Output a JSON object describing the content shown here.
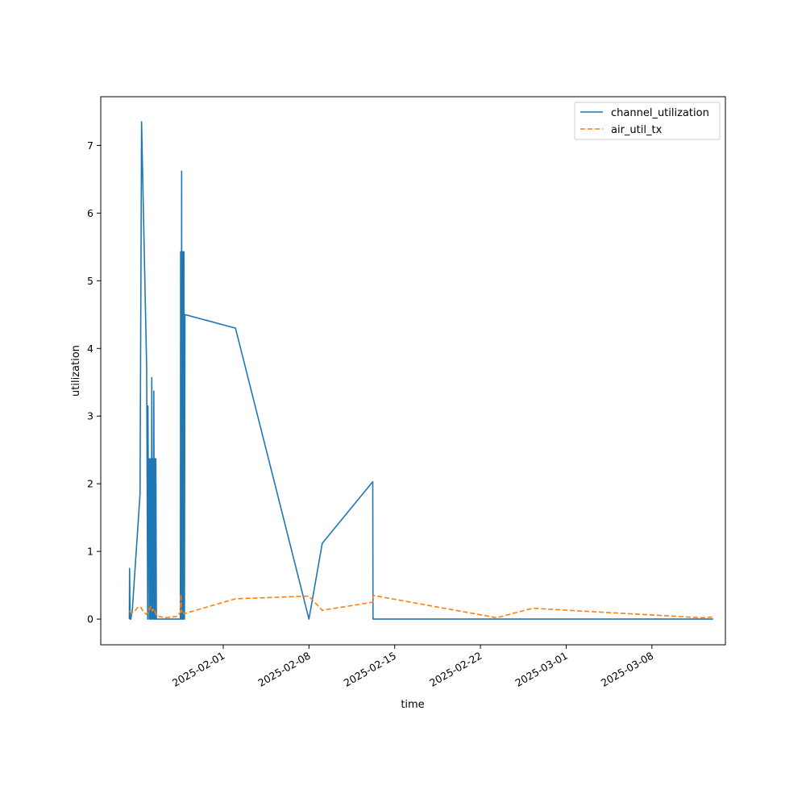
{
  "chart_data": {
    "type": "line",
    "xlabel": "time",
    "ylabel": "utilization",
    "x_axis_type": "date",
    "xlim": [
      "2025-01-22",
      "2025-03-14"
    ],
    "ylim": [
      -0.38,
      7.72
    ],
    "grid": false,
    "legend_position": "top-right",
    "x_ticks": [
      "2025-02-01",
      "2025-02-08",
      "2025-02-15",
      "2025-02-22",
      "2025-03-01",
      "2025-03-08"
    ],
    "y_ticks": [
      0,
      1,
      2,
      3,
      4,
      5,
      6,
      7
    ],
    "y_tick_labels": [
      "0",
      "1",
      "2",
      "3",
      "4",
      "5",
      "6",
      "7"
    ],
    "series": [
      {
        "name": "channel_utilization",
        "color": "#1f77b4",
        "dash": "solid",
        "points": [
          [
            "2025-01-24T08:00",
            0.0
          ],
          [
            "2025-01-24T08:30",
            0.75
          ],
          [
            "2025-01-24T09:30",
            0.0
          ],
          [
            "2025-01-24T11:00",
            0.0
          ],
          [
            "2025-01-24T14:00",
            0.15
          ],
          [
            "2025-01-25T05:00",
            1.85
          ],
          [
            "2025-01-25T08:00",
            7.35
          ],
          [
            "2025-01-25T18:00",
            3.7
          ],
          [
            "2025-01-25T20:00",
            0.0
          ],
          [
            "2025-01-25T20:30",
            3.15
          ],
          [
            "2025-01-25T21:00",
            2.37
          ],
          [
            "2025-01-25T22:00",
            2.37
          ],
          [
            "2025-01-25T23:00",
            0.0
          ],
          [
            "2025-01-26T00:00",
            2.37
          ],
          [
            "2025-01-26T01:00",
            0.0
          ],
          [
            "2025-01-26T02:00",
            2.37
          ],
          [
            "2025-01-26T03:00",
            0.0
          ],
          [
            "2025-01-26T04:00",
            3.57
          ],
          [
            "2025-01-26T05:00",
            0.0
          ],
          [
            "2025-01-26T06:00",
            2.37
          ],
          [
            "2025-01-26T07:00",
            0.0
          ],
          [
            "2025-01-26T08:00",
            3.37
          ],
          [
            "2025-01-26T09:00",
            0.0
          ],
          [
            "2025-01-26T10:00",
            2.37
          ],
          [
            "2025-01-26T11:00",
            0.0
          ],
          [
            "2025-01-26T12:00",
            2.37
          ],
          [
            "2025-01-26T13:00",
            0.0
          ],
          [
            "2025-01-28T12:00",
            0.0
          ],
          [
            "2025-01-28T12:30",
            5.43
          ],
          [
            "2025-01-28T13:00",
            0.0
          ],
          [
            "2025-01-28T13:30",
            5.43
          ],
          [
            "2025-01-28T14:00",
            0.0
          ],
          [
            "2025-01-28T14:30",
            6.62
          ],
          [
            "2025-01-28T15:00",
            0.0
          ],
          [
            "2025-01-28T15:30",
            5.43
          ],
          [
            "2025-01-28T16:00",
            0.0
          ],
          [
            "2025-01-28T17:00",
            5.43
          ],
          [
            "2025-01-28T18:00",
            0.0
          ],
          [
            "2025-01-28T19:00",
            5.43
          ],
          [
            "2025-01-28T20:00",
            0.0
          ],
          [
            "2025-01-28T21:00",
            4.5
          ],
          [
            "2025-02-02T00:00",
            4.3
          ],
          [
            "2025-02-08T00:00",
            0.0
          ],
          [
            "2025-02-09T02:00",
            1.12
          ],
          [
            "2025-02-13T05:00",
            2.03
          ],
          [
            "2025-02-13T05:30",
            0.0
          ],
          [
            "2025-03-13T00:00",
            0.0
          ]
        ]
      },
      {
        "name": "air_util_tx",
        "color": "#ff7f0e",
        "dash": "dashed",
        "points": [
          [
            "2025-01-24T08:00",
            0.12
          ],
          [
            "2025-01-24T12:00",
            0.09
          ],
          [
            "2025-01-24T18:00",
            0.11
          ],
          [
            "2025-01-25T00:00",
            0.17
          ],
          [
            "2025-01-25T06:00",
            0.18
          ],
          [
            "2025-01-25T12:00",
            0.1
          ],
          [
            "2025-01-25T18:00",
            0.07
          ],
          [
            "2025-01-25T22:00",
            0.12
          ],
          [
            "2025-01-26T02:00",
            0.19
          ],
          [
            "2025-01-26T05:00",
            0.12
          ],
          [
            "2025-01-26T08:00",
            0.16
          ],
          [
            "2025-01-26T12:00",
            0.07
          ],
          [
            "2025-01-26T18:00",
            0.04
          ],
          [
            "2025-01-27T06:00",
            0.02
          ],
          [
            "2025-01-27T18:00",
            0.03
          ],
          [
            "2025-01-28T06:00",
            0.04
          ],
          [
            "2025-01-28T12:00",
            0.1
          ],
          [
            "2025-01-28T13:00",
            0.37
          ],
          [
            "2025-01-28T14:00",
            0.1
          ],
          [
            "2025-01-28T15:00",
            0.13
          ],
          [
            "2025-01-28T17:00",
            0.1
          ],
          [
            "2025-01-28T20:00",
            0.08
          ],
          [
            "2025-01-29T00:00",
            0.09
          ],
          [
            "2025-02-02T00:00",
            0.3
          ],
          [
            "2025-02-08T00:00",
            0.34
          ],
          [
            "2025-02-09T02:00",
            0.13
          ],
          [
            "2025-02-13T05:00",
            0.25
          ],
          [
            "2025-02-13T06:00",
            0.35
          ],
          [
            "2025-02-23T08:00",
            0.02
          ],
          [
            "2025-02-26T06:00",
            0.16
          ],
          [
            "2025-03-12T00:00",
            0.02
          ],
          [
            "2025-03-13T00:00",
            0.03
          ]
        ]
      }
    ]
  }
}
